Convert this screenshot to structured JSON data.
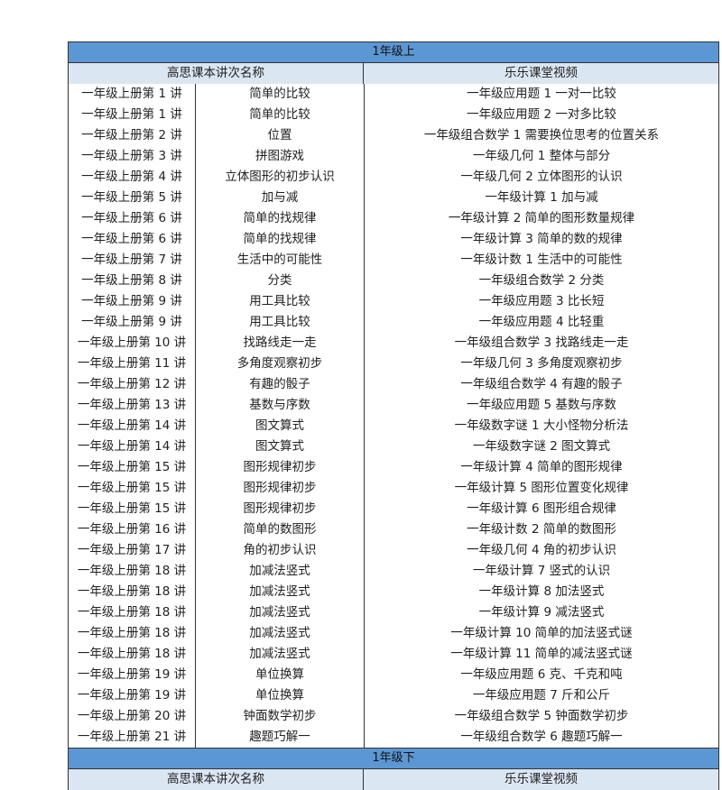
{
  "sections": [
    {
      "title": "1年级上",
      "headers": [
        "高思课本讲次名称",
        "乐乐课堂视频"
      ],
      "rows": [
        [
          "一年级上册第 1 讲",
          "简单的比较",
          "一年级应用题 1 一对一比较"
        ],
        [
          "一年级上册第 1 讲",
          "简单的比较",
          "一年级应用题 2 一对多比较"
        ],
        [
          "一年级上册第 2 讲",
          "位置",
          "一年级组合数学 1 需要换位思考的位置关系"
        ],
        [
          "一年级上册第 3 讲",
          "拼图游戏",
          "一年级几何 1 整体与部分"
        ],
        [
          "一年级上册第 4 讲",
          "立体图形的初步认识",
          "一年级几何 2 立体图形的认识"
        ],
        [
          "一年级上册第 5 讲",
          "加与减",
          "一年级计算 1 加与减"
        ],
        [
          "一年级上册第 6 讲",
          "简单的找规律",
          "一年级计算 2 简单的图形数量规律"
        ],
        [
          "一年级上册第 6 讲",
          "简单的找规律",
          "一年级计算 3 简单的数的规律"
        ],
        [
          "一年级上册第 7 讲",
          "生活中的可能性",
          "一年级计数 1 生活中的可能性"
        ],
        [
          "一年级上册第 8 讲",
          "分类",
          "一年级组合数学 2 分类"
        ],
        [
          "一年级上册第 9 讲",
          "用工具比较",
          "一年级应用题 3 比长短"
        ],
        [
          "一年级上册第 9 讲",
          "用工具比较",
          "一年级应用题 4 比轻重"
        ],
        [
          "一年级上册第 10 讲",
          "找路线走一走",
          "一年级组合数学 3 找路线走一走"
        ],
        [
          "一年级上册第 11 讲",
          "多角度观察初步",
          "一年级几何 3 多角度观察初步"
        ],
        [
          "一年级上册第 12 讲",
          "有趣的骰子",
          "一年级组合数学 4 有趣的骰子"
        ],
        [
          "一年级上册第 13 讲",
          "基数与序数",
          "一年级应用题 5 基数与序数"
        ],
        [
          "一年级上册第 14 讲",
          "图文算式",
          "一年级数字谜 1 大小怪物分析法"
        ],
        [
          "一年级上册第 14 讲",
          "图文算式",
          "一年级数字谜 2 图文算式"
        ],
        [
          "一年级上册第 15 讲",
          "图形规律初步",
          "一年级计算 4 简单的图形规律"
        ],
        [
          "一年级上册第 15 讲",
          "图形规律初步",
          "一年级计算 5 图形位置变化规律"
        ],
        [
          "一年级上册第 15 讲",
          "图形规律初步",
          "一年级计算 6 图形组合规律"
        ],
        [
          "一年级上册第 16 讲",
          "简单的数图形",
          "一年级计数 2 简单的数图形"
        ],
        [
          "一年级上册第 17 讲",
          "角的初步认识",
          "一年级几何 4 角的初步认识"
        ],
        [
          "一年级上册第 18 讲",
          "加减法竖式",
          "一年级计算 7 竖式的认识"
        ],
        [
          "一年级上册第 18 讲",
          "加减法竖式",
          "一年级计算 8 加法竖式"
        ],
        [
          "一年级上册第 18 讲",
          "加减法竖式",
          "一年级计算 9 减法竖式"
        ],
        [
          "一年级上册第 18 讲",
          "加减法竖式",
          "一年级计算 10 简单的加法竖式谜"
        ],
        [
          "一年级上册第 18 讲",
          "加减法竖式",
          "一年级计算 11 简单的减法竖式谜"
        ],
        [
          "一年级上册第 19 讲",
          "单位换算",
          "一年级应用题 6 克、千克和吨"
        ],
        [
          "一年级上册第 19 讲",
          "单位换算",
          "一年级应用题 7 斤和公斤"
        ],
        [
          "一年级上册第 20 讲",
          "钟面数学初步",
          "一年级组合数学 5 钟面数学初步"
        ],
        [
          "一年级上册第 21 讲",
          "趣题巧解一",
          "一年级组合数学 6 趣题巧解一"
        ]
      ]
    },
    {
      "title": "1年级下",
      "headers": [
        "高思课本讲次名称",
        "乐乐课堂视频"
      ],
      "rows": []
    }
  ]
}
